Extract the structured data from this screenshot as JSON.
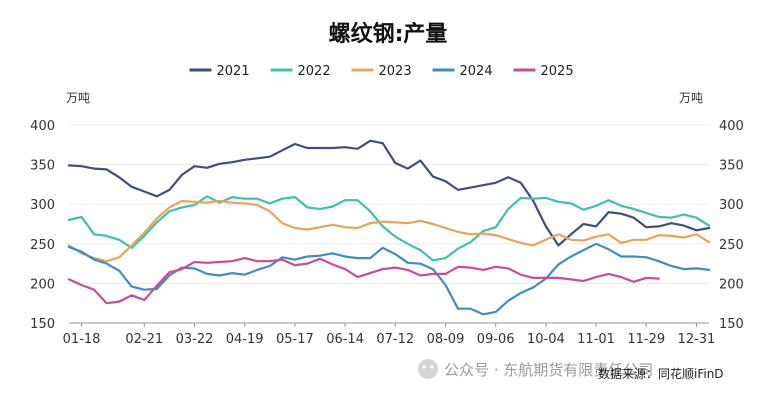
{
  "chart_data": {
    "type": "line",
    "title": "螺纹钢:产量",
    "unit_left": "万吨",
    "unit_right": "万吨",
    "ylim": [
      150,
      400
    ],
    "yticks": [
      150,
      200,
      250,
      300,
      350,
      400
    ],
    "x_points": 52,
    "xtick_labels": [
      "01-18",
      "02-21",
      "03-22",
      "04-19",
      "05-17",
      "06-14",
      "07-12",
      "08-09",
      "09-06",
      "10-04",
      "11-01",
      "11-29",
      "12-31"
    ],
    "xtick_index": [
      1,
      6,
      10,
      14,
      18,
      22,
      26,
      30,
      34,
      38,
      42,
      46,
      50
    ],
    "series": [
      {
        "name": "2021",
        "color": "#3f4f7c",
        "values": [
          349,
          348,
          345,
          344,
          334,
          322,
          316,
          310,
          318,
          337,
          348,
          346,
          351,
          353,
          356,
          358,
          360,
          368,
          376,
          371,
          371,
          371,
          372,
          370,
          380,
          377,
          352,
          345,
          355,
          335,
          329,
          318,
          321,
          324,
          327,
          334,
          327,
          304,
          272,
          248,
          262,
          275,
          272,
          290,
          288,
          283,
          271,
          272,
          276,
          273,
          267,
          270
        ]
      },
      {
        "name": "2022",
        "color": "#3fbfb0",
        "values": [
          280,
          284,
          262,
          260,
          255,
          245,
          260,
          277,
          291,
          296,
          299,
          310,
          302,
          309,
          307,
          307,
          301,
          307,
          309,
          296,
          294,
          297,
          305,
          305,
          291,
          272,
          259,
          250,
          242,
          229,
          232,
          244,
          252,
          266,
          271,
          294,
          308,
          307,
          308,
          303,
          301,
          293,
          298,
          305,
          298,
          294,
          289,
          284,
          283,
          287,
          283,
          273
        ]
      },
      {
        "name": "2023",
        "color": "#e8a55a",
        "values": [
          248,
          238,
          232,
          228,
          233,
          248,
          264,
          282,
          296,
          304,
          303,
          302,
          304,
          302,
          301,
          299,
          291,
          276,
          270,
          268,
          271,
          274,
          271,
          270,
          276,
          278,
          277,
          276,
          279,
          275,
          270,
          265,
          262,
          263,
          261,
          256,
          251,
          248,
          255,
          262,
          255,
          254,
          259,
          262,
          251,
          255,
          255,
          261,
          260,
          258,
          262,
          252
        ]
      },
      {
        "name": "2024",
        "color": "#3f8dc0",
        "values": [
          246,
          240,
          230,
          225,
          216,
          196,
          192,
          193,
          210,
          220,
          219,
          212,
          210,
          213,
          211,
          217,
          222,
          233,
          230,
          234,
          235,
          238,
          234,
          232,
          232,
          245,
          237,
          226,
          225,
          218,
          198,
          168,
          168,
          161,
          164,
          178,
          188,
          195,
          206,
          224,
          234,
          242,
          250,
          243,
          234,
          234,
          233,
          228,
          222,
          218,
          219,
          217
        ]
      },
      {
        "name": "2025",
        "color": "#c84d94",
        "values": [
          205,
          198,
          192,
          175,
          177,
          185,
          179,
          197,
          214,
          218,
          227,
          226,
          227,
          228,
          232,
          228,
          228,
          230,
          223,
          225,
          231,
          224,
          218,
          208,
          213,
          218,
          220,
          217,
          210,
          212,
          212,
          221,
          220,
          217,
          221,
          219,
          211,
          207,
          207,
          207,
          205,
          203,
          208,
          212,
          208,
          202,
          207,
          206
        ]
      }
    ],
    "source_text": "数据来源：同花顺iFinD",
    "watermark": "公众号 · 东航期货有限责任公司",
    "legend_position": "top-center"
  }
}
